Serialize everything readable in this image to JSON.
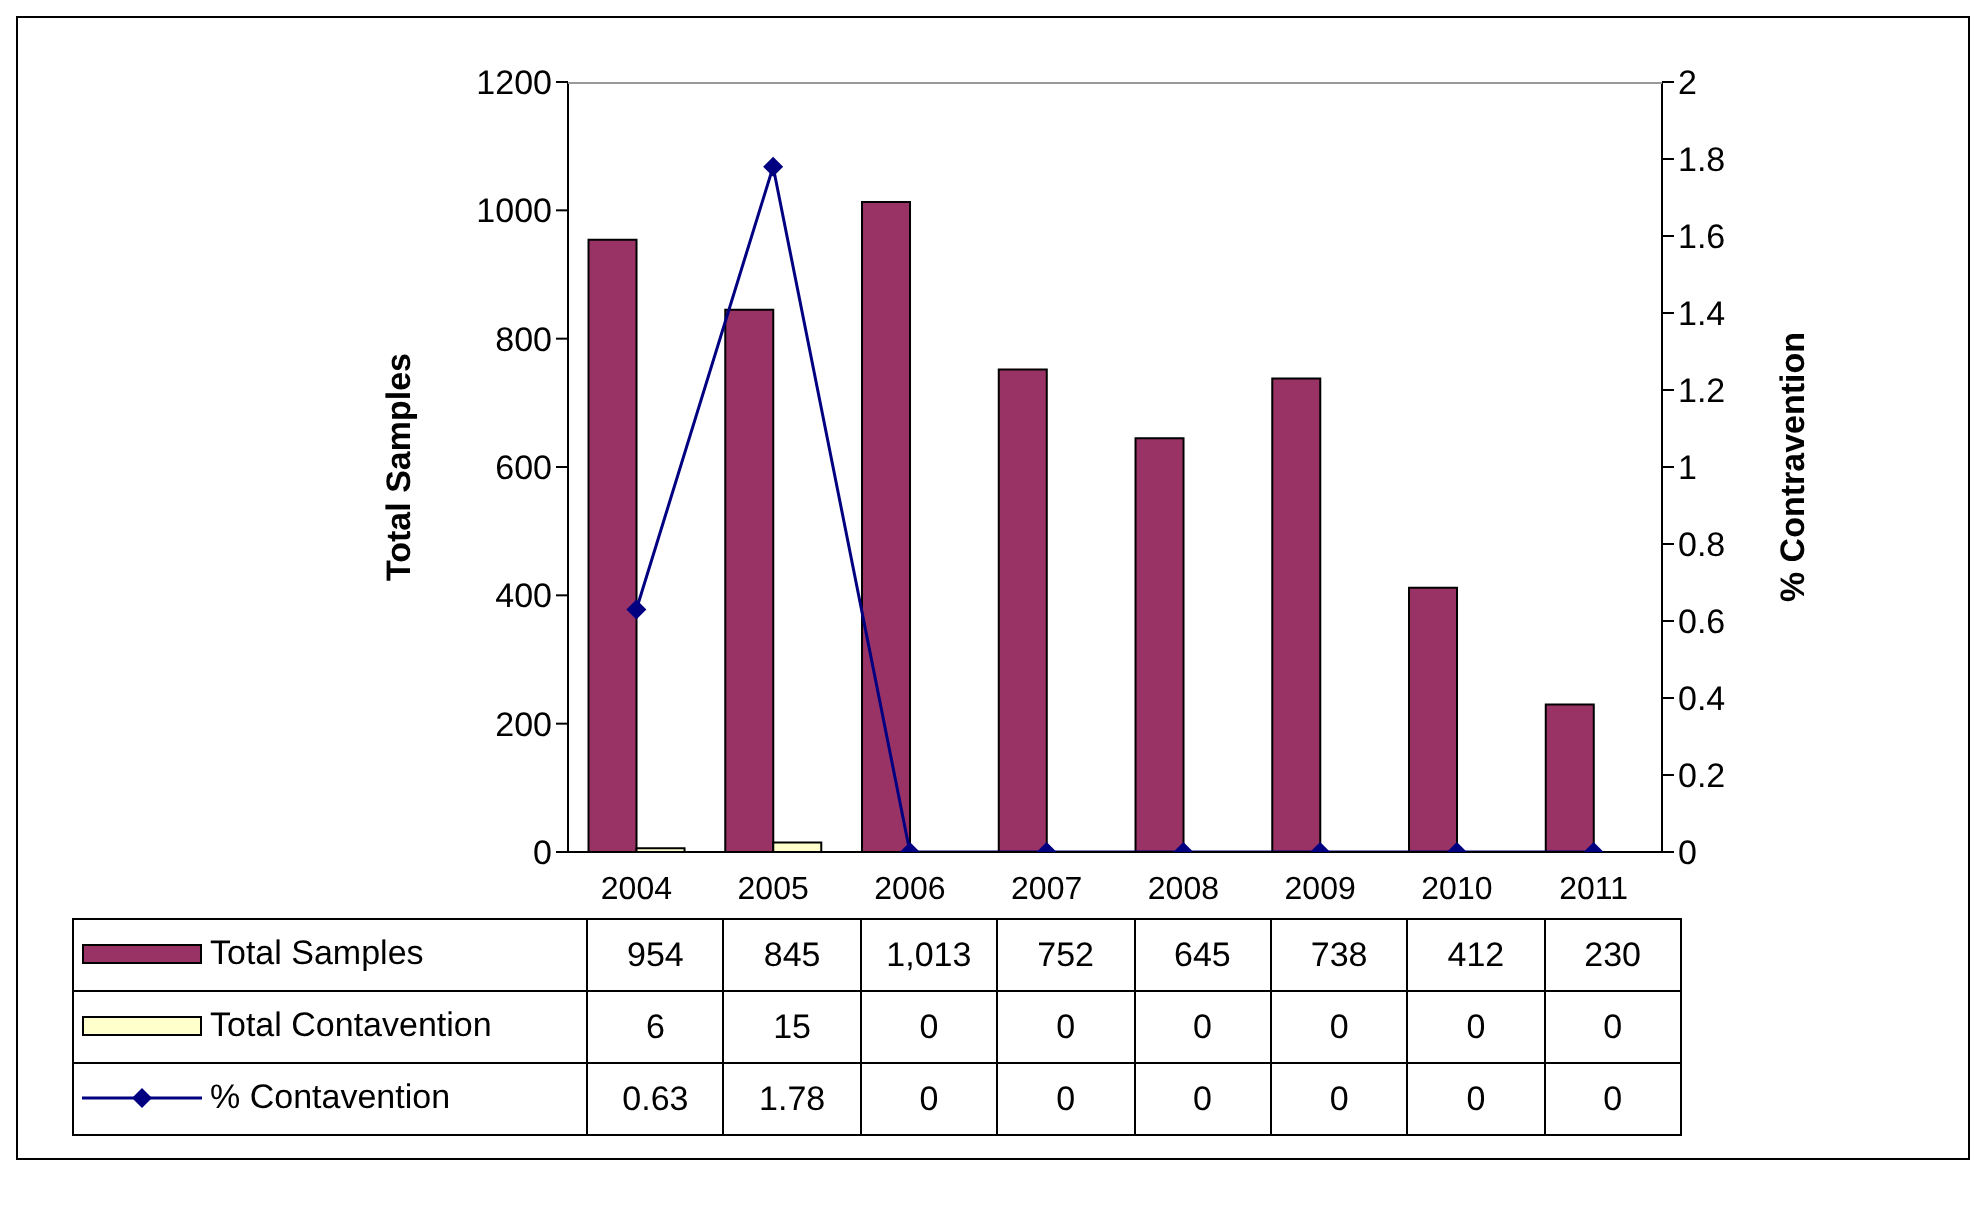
{
  "chart_data": {
    "type": "bar",
    "categories": [
      "2004",
      "2005",
      "2006",
      "2007",
      "2008",
      "2009",
      "2010",
      "2011"
    ],
    "ylabel": "Total Samples",
    "y2label": "% Contravention",
    "series": [
      {
        "name": "Total Samples",
        "color": "#993366",
        "values": [
          954,
          845,
          1013,
          752,
          645,
          738,
          412,
          230
        ],
        "value_labels": [
          "954",
          "845",
          "1,013",
          "752",
          "645",
          "738",
          "412",
          "230"
        ]
      },
      {
        "name": "Total Contavention",
        "color": "#ffffcc",
        "values": [
          6,
          15,
          0,
          0,
          0,
          0,
          0,
          0
        ],
        "value_labels": [
          "6",
          "15",
          "0",
          "0",
          "0",
          "0",
          "0",
          "0"
        ]
      },
      {
        "name": "% Contavention",
        "type": "line",
        "axis": "y2",
        "color": "#000080",
        "marker": "diamond",
        "values": [
          0.63,
          1.78,
          0,
          0,
          0,
          0,
          0,
          0
        ],
        "value_labels": [
          "0.63",
          "1.78",
          "0",
          "0",
          "0",
          "0",
          "0",
          "0"
        ]
      }
    ],
    "ylim": [
      0,
      1200
    ],
    "yticks": [
      0,
      200,
      400,
      600,
      800,
      1000,
      1200
    ],
    "y2lim": [
      0,
      2
    ],
    "y2ticks": [
      0,
      0.2,
      0.4,
      0.6,
      0.8,
      1,
      1.2,
      1.4,
      1.6,
      1.8,
      2
    ],
    "legend": "bottom left",
    "grid": false
  }
}
